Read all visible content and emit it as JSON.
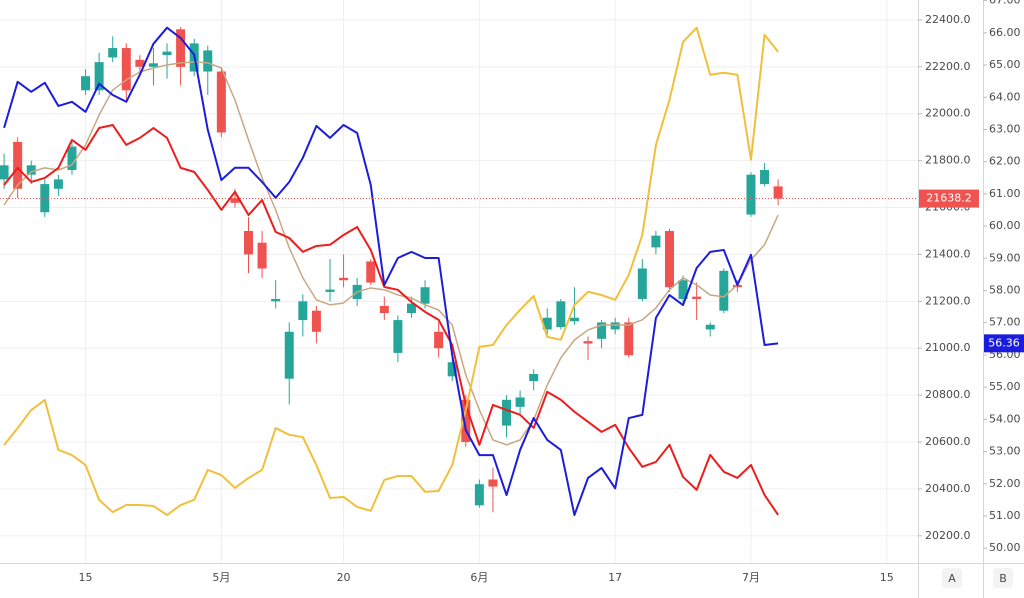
{
  "chart_data": {
    "type": "candlestick",
    "xlim": [
      -0.3,
      67.3
    ],
    "xticks": [
      {
        "value": 6,
        "label": "15"
      },
      {
        "value": 16,
        "label": "5月"
      },
      {
        "value": 25,
        "label": "20"
      },
      {
        "value": 35,
        "label": "6月"
      },
      {
        "value": 45,
        "label": "17"
      },
      {
        "value": 55,
        "label": "7月"
      },
      {
        "value": 65,
        "label": "15"
      }
    ],
    "ylim": [
      20084,
      22485
    ],
    "yticks": [
      {
        "value": 20200,
        "label": "20200.0"
      },
      {
        "value": 20400,
        "label": "20400.0"
      },
      {
        "value": 20600,
        "label": "20600.0"
      },
      {
        "value": 20800,
        "label": "20800.0"
      },
      {
        "value": 21000,
        "label": "21000.0"
      },
      {
        "value": 21200,
        "label": "21200.0"
      },
      {
        "value": 21400,
        "label": "21400.0"
      },
      {
        "value": 21600,
        "label": "21600.0"
      },
      {
        "value": 21800,
        "label": "21800.0"
      },
      {
        "value": 22000,
        "label": "22000.0"
      },
      {
        "value": 22200,
        "label": "22200.0"
      },
      {
        "value": 22400,
        "label": "22400.0"
      }
    ],
    "y2lim": [
      49.54,
      67.02
    ],
    "y2ticks": [
      {
        "value": 50,
        "label": "50.00"
      },
      {
        "value": 51,
        "label": "51.00"
      },
      {
        "value": 52,
        "label": "52.00"
      },
      {
        "value": 53,
        "label": "53.00"
      },
      {
        "value": 54,
        "label": "54.00"
      },
      {
        "value": 55,
        "label": "55.00"
      },
      {
        "value": 56,
        "label": "56.00"
      },
      {
        "value": 57,
        "label": "57.00"
      },
      {
        "value": 58,
        "label": "58.00"
      },
      {
        "value": 59,
        "label": "59.00"
      },
      {
        "value": 60,
        "label": "60.00"
      },
      {
        "value": 61,
        "label": "61.00"
      },
      {
        "value": 62,
        "label": "62.00"
      },
      {
        "value": 63,
        "label": "63.00"
      },
      {
        "value": 64,
        "label": "64.00"
      },
      {
        "value": 65,
        "label": "65.00"
      },
      {
        "value": 66,
        "label": "66.00"
      },
      {
        "value": 67,
        "label": "67.00"
      }
    ],
    "grid": true,
    "candles": {
      "up_color": "#26a69a",
      "down_color": "#ef5350",
      "open": [
        21720,
        21880,
        21740,
        21580,
        21680,
        21760,
        22100,
        22100,
        22240,
        22280,
        22230,
        22200,
        22250,
        22360,
        22180,
        22180,
        22180,
        21640,
        21500,
        21450,
        21200,
        20870,
        21120,
        21160,
        21240,
        21300,
        21210,
        21370,
        21180,
        20980,
        21150,
        21190,
        21070,
        20880,
        20780,
        20330,
        20440,
        20670,
        20750,
        20860,
        21080,
        21090,
        21115,
        21030,
        21040,
        21080,
        21110,
        21210,
        21430,
        21500,
        21210,
        21220,
        21080,
        21160,
        21270,
        21570,
        21700,
        21690
      ],
      "high": [
        21830,
        21900,
        21800,
        21720,
        21740,
        21880,
        22190,
        22260,
        22330,
        22300,
        22250,
        22280,
        22300,
        22370,
        22320,
        22290,
        22200,
        21680,
        21560,
        21500,
        21290,
        21110,
        21230,
        21180,
        21380,
        21400,
        21300,
        21380,
        21220,
        21140,
        21220,
        21290,
        21110,
        20960,
        20800,
        20440,
        20490,
        20800,
        20820,
        20910,
        21170,
        21210,
        21260,
        21050,
        21120,
        21130,
        21130,
        21380,
        21500,
        21510,
        21310,
        21280,
        21110,
        21340,
        21290,
        21750,
        21790,
        21720
      ],
      "low": [
        21680,
        21640,
        21700,
        21560,
        21650,
        21740,
        22080,
        22080,
        22220,
        22060,
        22180,
        22120,
        22150,
        22120,
        22160,
        22080,
        21900,
        21600,
        21320,
        21300,
        21170,
        20760,
        21050,
        21020,
        21200,
        21260,
        21180,
        21270,
        21120,
        20940,
        21130,
        21170,
        20960,
        20860,
        20580,
        20320,
        20300,
        20620,
        20720,
        20820,
        21060,
        21080,
        21100,
        20950,
        21000,
        21060,
        20960,
        21200,
        21400,
        21240,
        21190,
        21120,
        21050,
        21150,
        21240,
        21560,
        21690,
        21610
      ],
      "close": [
        21780,
        21680,
        21780,
        21700,
        21720,
        21860,
        22160,
        22220,
        22280,
        22100,
        22200,
        22215,
        22265,
        22200,
        22300,
        22270,
        21920,
        21620,
        21400,
        21340,
        21210,
        21070,
        21200,
        21070,
        21250,
        21290,
        21270,
        21280,
        21150,
        21120,
        21190,
        21260,
        21000,
        20940,
        20600,
        20420,
        20410,
        20780,
        20790,
        20890,
        21130,
        21200,
        21130,
        21020,
        21110,
        21110,
        20970,
        21340,
        21480,
        21260,
        21290,
        21210,
        21100,
        21330,
        21260,
        21740,
        21760,
        21638.2
      ]
    },
    "series": [
      {
        "color": "#c8a883",
        "axis": "y",
        "values": [
          21611,
          21696,
          21752,
          21769,
          21760,
          21782,
          21867,
          21995,
          22101,
          22144,
          22178,
          22195,
          22208,
          22217,
          22221,
          22217,
          22195,
          22059,
          21888,
          21726,
          21590,
          21428,
          21300,
          21206,
          21185,
          21193,
          21240,
          21257,
          21249,
          21227,
          21214,
          21185,
          21163,
          21099,
          20886,
          20737,
          20609,
          20588,
          20609,
          20694,
          20843,
          20959,
          21035,
          21078,
          21099,
          21099,
          21099,
          21121,
          21172,
          21249,
          21300,
          21270,
          21227,
          21219,
          21270,
          21377,
          21441,
          21568
        ]
      },
      {
        "color": "#ee1c1c",
        "axis": "y",
        "values": [
          21696,
          21769,
          21709,
          21726,
          21769,
          21888,
          21846,
          21939,
          21952,
          21867,
          21897,
          21939,
          21897,
          21769,
          21752,
          21675,
          21590,
          21667,
          21568,
          21632,
          21496,
          21470,
          21411,
          21436,
          21441,
          21483,
          21517,
          21419,
          21261,
          21249,
          21197,
          21155,
          21121,
          21014,
          20758,
          20588,
          20758,
          20737,
          20716,
          20660,
          20814,
          20780,
          20729,
          20686,
          20643,
          20673,
          20575,
          20494,
          20515,
          20588,
          20451,
          20396,
          20545,
          20473,
          20447,
          20502,
          20374,
          20289
        ]
      },
      {
        "color": "#f0c03c",
        "axis": "y2",
        "values": [
          53.2,
          53.73,
          54.29,
          54.6,
          53.05,
          52.89,
          52.58,
          51.5,
          51.12,
          51.34,
          51.34,
          51.31,
          51.03,
          51.34,
          51.5,
          52.43,
          52.27,
          51.87,
          52.18,
          52.43,
          53.73,
          53.52,
          53.45,
          52.58,
          51.56,
          51.59,
          51.28,
          51.16,
          52.12,
          52.24,
          52.24,
          51.75,
          51.78,
          52.58,
          54.29,
          56.25,
          56.31,
          56.93,
          57.4,
          57.83,
          56.56,
          56.47,
          57.55,
          57.96,
          57.86,
          57.71,
          58.48,
          59.73,
          62.52,
          63.92,
          65.72,
          66.16,
          64.7,
          64.76,
          64.7,
          62.06,
          65.94,
          65.41
        ]
      },
      {
        "color": "#1c1cdc",
        "axis": "y2",
        "values": [
          63.05,
          64.48,
          64.17,
          64.45,
          63.73,
          63.86,
          63.55,
          64.42,
          64.07,
          63.86,
          64.7,
          65.66,
          66.16,
          65.84,
          65.32,
          62.99,
          61.43,
          61.81,
          61.81,
          61.37,
          60.88,
          61.37,
          62.12,
          63.11,
          62.74,
          63.14,
          62.89,
          61.28,
          58.17,
          59.01,
          59.2,
          59.01,
          59.01,
          55.99,
          53.67,
          52.89,
          52.89,
          51.65,
          53.05,
          54.04,
          53.36,
          53.05,
          51.03,
          52.18,
          52.49,
          51.86,
          54.04,
          54.14,
          57.15,
          57.86,
          57.55,
          58.7,
          59.2,
          59.26,
          58.17,
          59.11,
          56.31,
          56.36
        ]
      }
    ],
    "axis_buttons": [
      "A",
      "B"
    ]
  }
}
